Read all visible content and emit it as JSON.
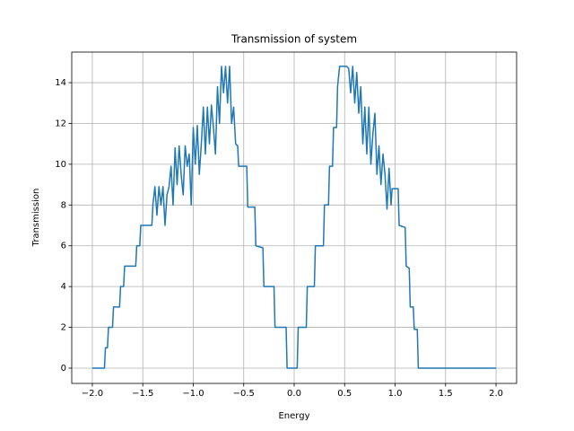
{
  "chart_data": {
    "type": "line",
    "title": "Transmission of system",
    "x_label": "Energy",
    "y_label": "Transmission",
    "color": "#1f77b4",
    "grid": true,
    "xlim": [
      -2.204,
      2.204
    ],
    "ylim": [
      -0.75,
      15.5
    ],
    "xticks": [
      {
        "value": -2.0,
        "label": "−2.0"
      },
      {
        "value": -1.5,
        "label": "−1.5"
      },
      {
        "value": -1.0,
        "label": "−1.0"
      },
      {
        "value": -0.5,
        "label": "−0.5"
      },
      {
        "value": 0,
        "label": "0.0"
      },
      {
        "value": 0.5,
        "label": "0.5"
      },
      {
        "value": 1.0,
        "label": "1.0"
      },
      {
        "value": 1.5,
        "label": "1.5"
      },
      {
        "value": 2.0,
        "label": "2.0"
      }
    ],
    "yticks": [
      0,
      2,
      4,
      6,
      8,
      10,
      12,
      14
    ],
    "x": [
      -2.0,
      -1.88,
      -1.87,
      -1.85,
      -1.84,
      -1.8,
      -1.79,
      -1.73,
      -1.72,
      -1.69,
      -1.68,
      -1.57,
      -1.56,
      -1.53,
      -1.52,
      -1.41,
      -1.4,
      -1.38,
      -1.36,
      -1.34,
      -1.32,
      -1.3,
      -1.28,
      -1.26,
      -1.24,
      -1.22,
      -1.2,
      -1.18,
      -1.16,
      -1.14,
      -1.12,
      -1.1,
      -1.08,
      -1.06,
      -1.04,
      -1.02,
      -1.0,
      -0.98,
      -0.96,
      -0.94,
      -0.92,
      -0.9,
      -0.88,
      -0.86,
      -0.84,
      -0.82,
      -0.8,
      -0.78,
      -0.76,
      -0.74,
      -0.72,
      -0.7,
      -0.68,
      -0.66,
      -0.64,
      -0.62,
      -0.6,
      -0.58,
      -0.56,
      -0.55,
      -0.47,
      -0.46,
      -0.39,
      -0.38,
      -0.31,
      -0.3,
      -0.2,
      -0.19,
      -0.08,
      -0.07,
      0.03,
      0.04,
      0.12,
      0.13,
      0.2,
      0.21,
      0.29,
      0.3,
      0.34,
      0.35,
      0.38,
      0.39,
      0.42,
      0.43,
      0.45,
      0.52,
      0.54,
      0.56,
      0.58,
      0.6,
      0.62,
      0.64,
      0.66,
      0.68,
      0.7,
      0.72,
      0.74,
      0.76,
      0.78,
      0.8,
      0.82,
      0.84,
      0.86,
      0.88,
      0.9,
      0.92,
      0.94,
      0.96,
      0.97,
      1.03,
      1.04,
      1.1,
      1.11,
      1.14,
      1.15,
      1.18,
      1.19,
      1.22,
      1.23,
      2.0
    ],
    "values": [
      0,
      0,
      1,
      1,
      2,
      2,
      3,
      3,
      4,
      4,
      5,
      5,
      6,
      6,
      7,
      7,
      8,
      8.9,
      7.5,
      8.9,
      8,
      8.9,
      7,
      8.5,
      8.9,
      9.9,
      8,
      10.8,
      9,
      10.9,
      9.5,
      8.5,
      10.9,
      9.9,
      10.5,
      8,
      11.8,
      10,
      11.9,
      9.5,
      11,
      12.8,
      10.5,
      12.8,
      11,
      12.9,
      11.8,
      10.5,
      13.8,
      12,
      14.8,
      13.5,
      14.8,
      13,
      14.8,
      12,
      12.8,
      11,
      10.9,
      9.9,
      9.9,
      7.9,
      7.9,
      6,
      5.9,
      4,
      4,
      2,
      2,
      0,
      0,
      2,
      2,
      4,
      4,
      6,
      6,
      8,
      8,
      9.9,
      9.9,
      11.8,
      11.8,
      13.8,
      14.8,
      14.8,
      14.7,
      13.5,
      14.8,
      13,
      14.5,
      12.5,
      13.8,
      11,
      12.8,
      10.5,
      12.8,
      10,
      11.5,
      12.5,
      9.5,
      10.9,
      9,
      10.5,
      9.5,
      7.8,
      9.8,
      8,
      8.8,
      8.8,
      7,
      6.9,
      5,
      4.9,
      3,
      3,
      1.9,
      1.9,
      0,
      0
    ]
  }
}
